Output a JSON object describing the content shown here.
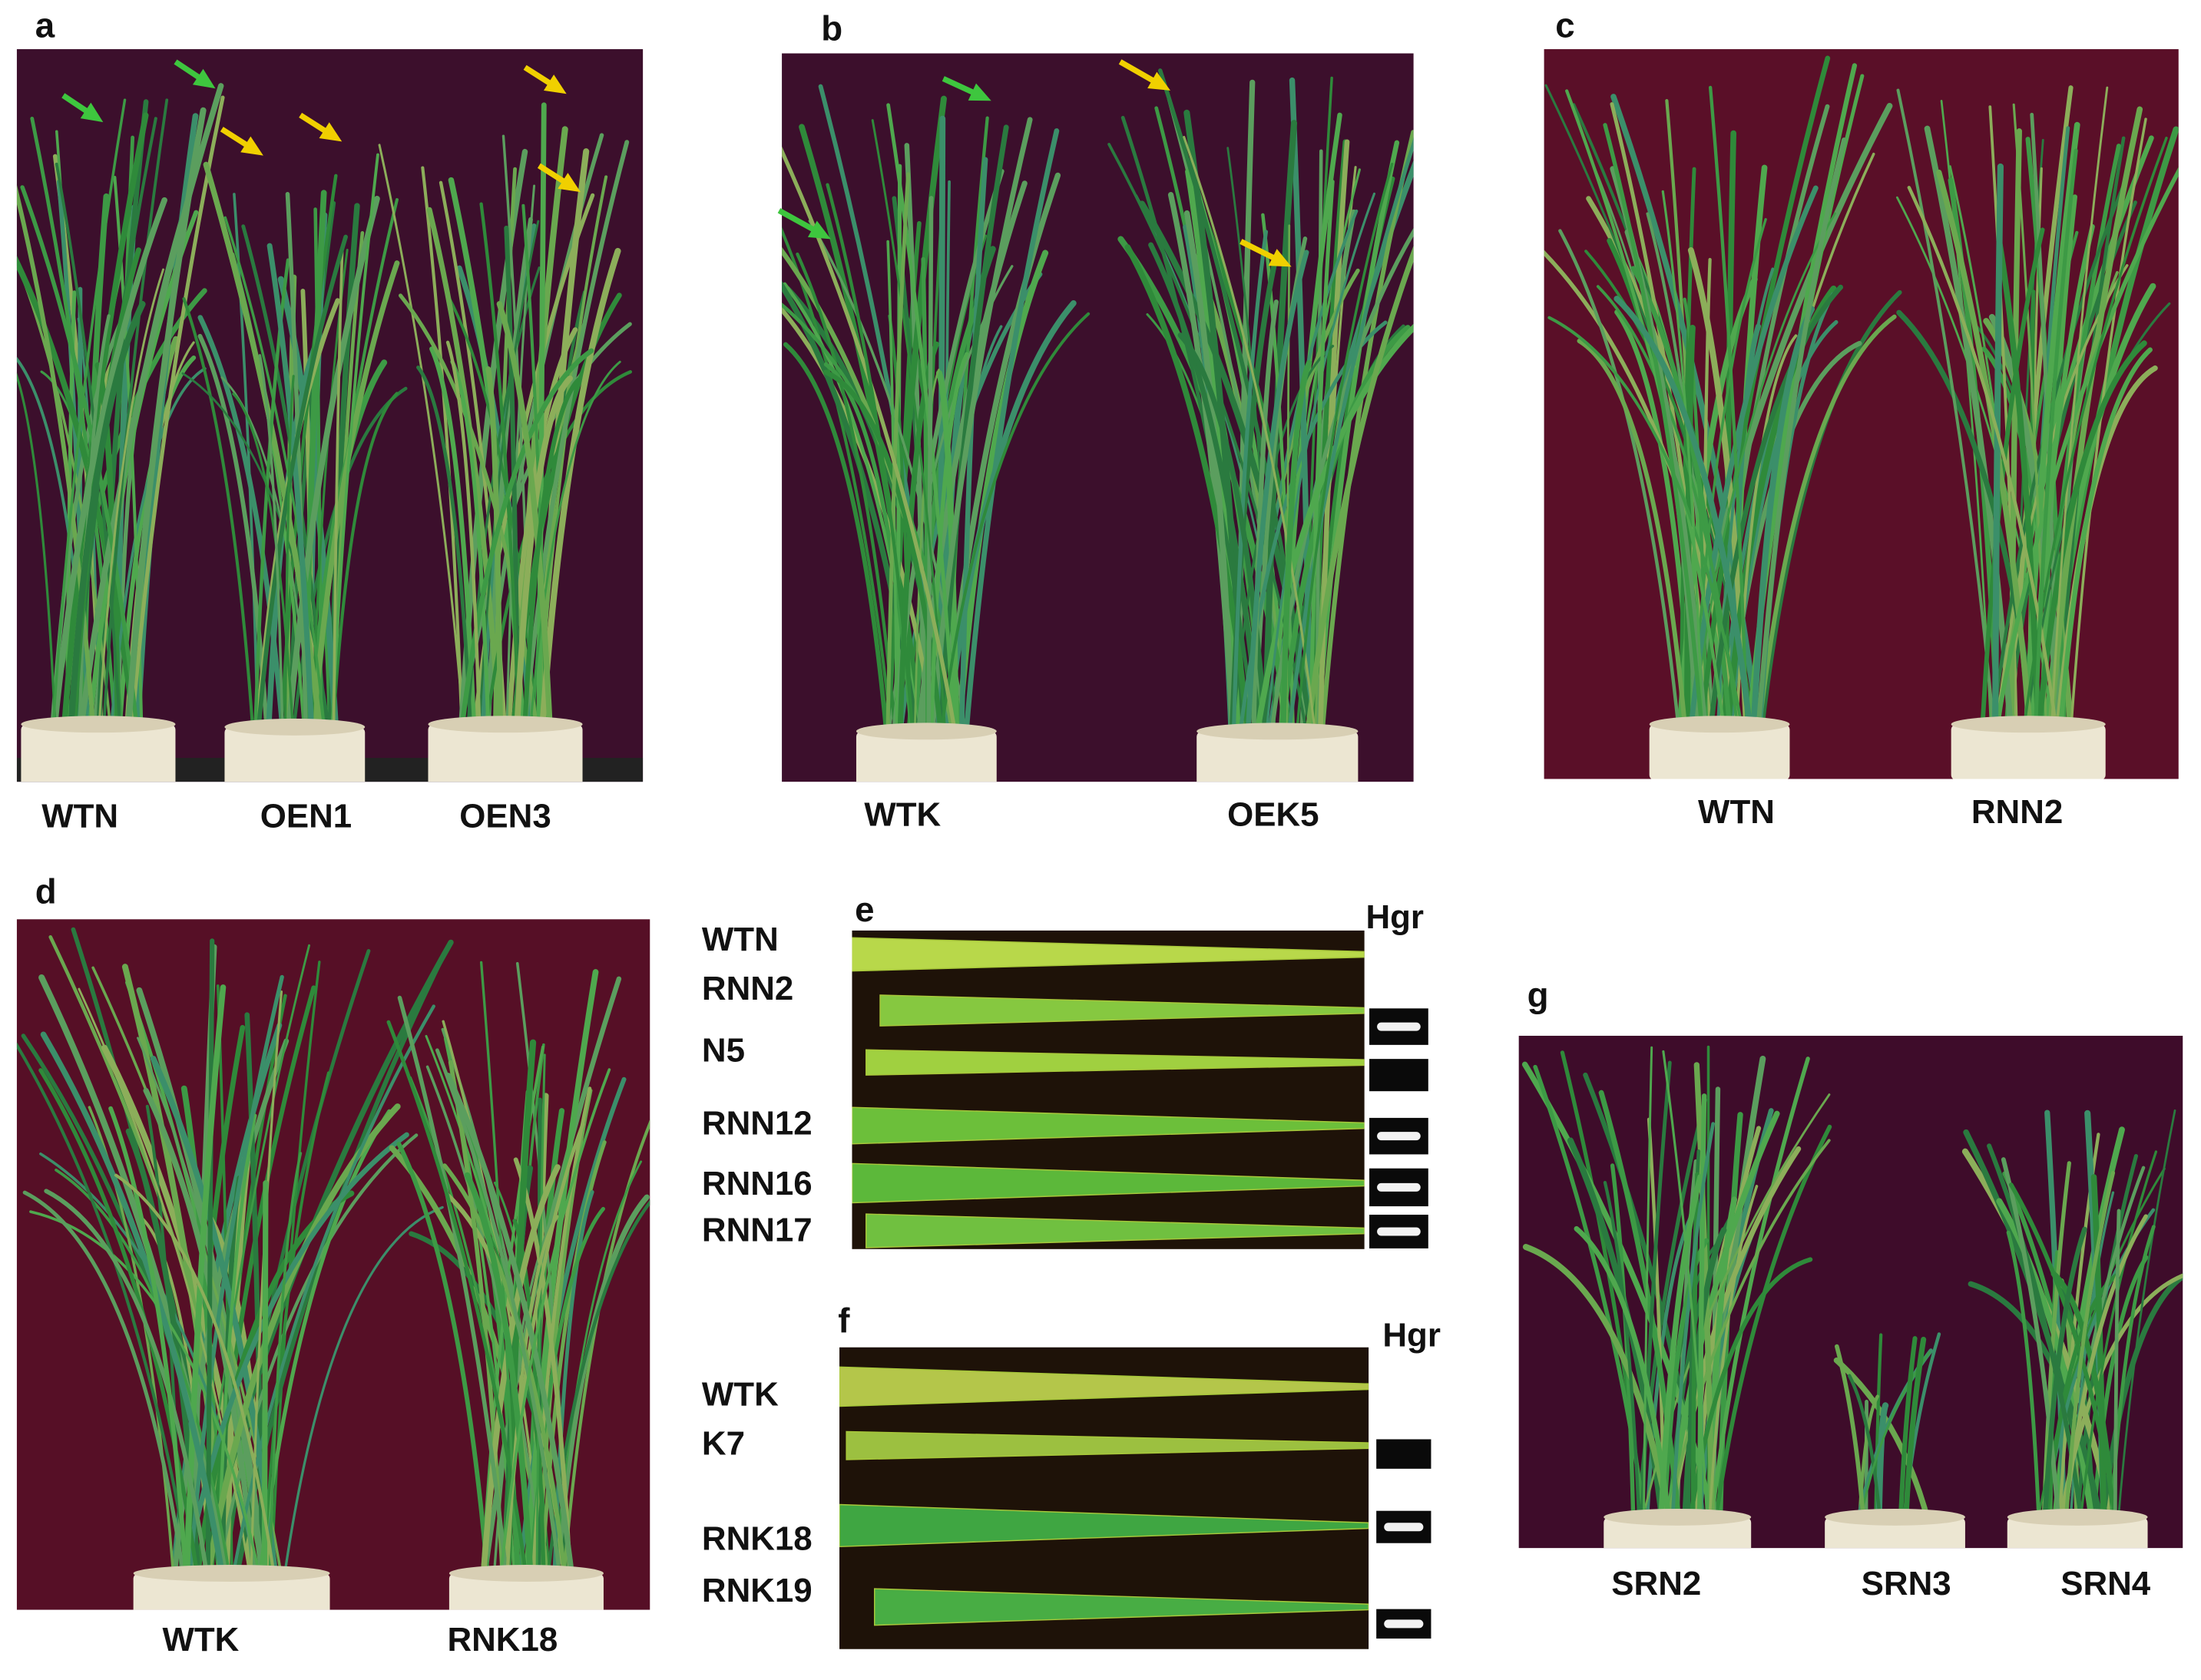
{
  "panels": [
    {
      "label": "a",
      "captions": [
        "WTN",
        "OEN1",
        "OEN3"
      ]
    },
    {
      "label": "b",
      "captions": [
        "WTK",
        "OEK5"
      ]
    },
    {
      "label": "c",
      "captions": [
        "WTN",
        "RNN2"
      ]
    },
    {
      "label": "d",
      "captions": [
        "WTK",
        "RNK18"
      ]
    },
    {
      "label": "e",
      "header": "Hgr",
      "rows": [
        "WTN",
        "RNN2",
        "N5",
        "RNN12",
        "RNN16",
        "RNN17"
      ]
    },
    {
      "label": "f",
      "header": "Hgr",
      "rows": [
        "WTK",
        "K7",
        "RNK18",
        "RNK19"
      ]
    },
    {
      "label": "g",
      "captions": [
        "SRN2",
        "SRN3",
        "SRN4"
      ]
    }
  ]
}
